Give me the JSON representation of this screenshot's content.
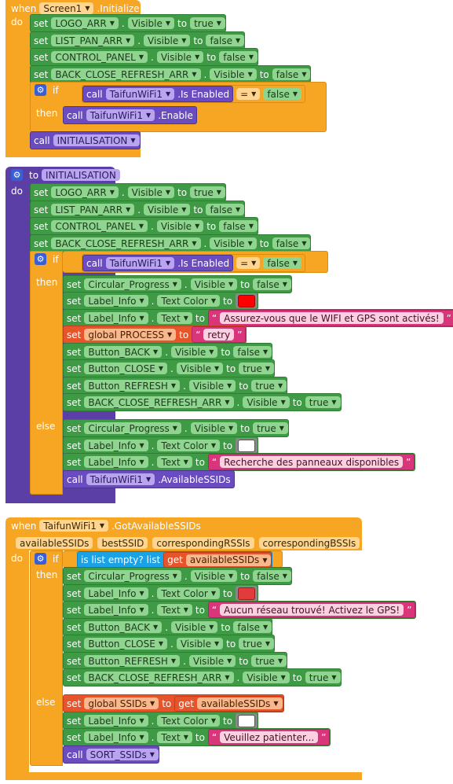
{
  "colors": {
    "event": "#f6a623",
    "setter": "#3f9a45",
    "procedure": "#5b3ea6",
    "red_swatch": "#ff0000",
    "white_swatch": "#ffffff"
  },
  "kw": {
    "when": "when",
    "do": "do",
    "set": "set",
    "to": "to",
    "if": "if",
    "then": "then",
    "else": "else",
    "call": "call",
    "global": "global",
    "get": "get",
    "dot": "."
  },
  "b1": {
    "component": "Screen1",
    "event": ".Initialize",
    "s1": {
      "comp": "LOGO_ARR",
      "prop": "Visible",
      "val": "true"
    },
    "s2": {
      "comp": "LIST_PAN_ARR",
      "prop": "Visible",
      "val": "false"
    },
    "s3": {
      "comp": "CONTROL_PANEL",
      "prop": "Visible",
      "val": "false"
    },
    "s4": {
      "comp": "BACK_CLOSE_REFRESH_ARR",
      "prop": "Visible",
      "val": "false"
    },
    "if": {
      "comp": "TaifunWiFi1",
      "method": ".Is Enabled",
      "op": "=",
      "val": "false"
    },
    "then_call": {
      "comp": "TaifunWiFi1",
      "method": ".Enable"
    },
    "call_proc": "INITIALISATION"
  },
  "b2": {
    "proc_kw": "to",
    "name": "INITIALISATION",
    "s1": {
      "comp": "LOGO_ARR",
      "prop": "Visible",
      "val": "true"
    },
    "s2": {
      "comp": "LIST_PAN_ARR",
      "prop": "Visible",
      "val": "false"
    },
    "s3": {
      "comp": "CONTROL_PANEL",
      "prop": "Visible",
      "val": "false"
    },
    "s4": {
      "comp": "BACK_CLOSE_REFRESH_ARR",
      "prop": "Visible",
      "val": "false"
    },
    "if": {
      "comp": "TaifunWiFi1",
      "method": ".Is Enabled",
      "op": "=",
      "val": "false"
    },
    "t1": {
      "comp": "Circular_Progress",
      "prop": "Visible",
      "val": "false"
    },
    "t2": {
      "comp": "Label_Info",
      "prop": "Text Color"
    },
    "t3": {
      "comp": "Label_Info",
      "prop": "Text",
      "val": "Assurez-vous que le WIFI et GPS sont activés!"
    },
    "t4": {
      "var": "PROCESS",
      "val": "retry"
    },
    "t5": {
      "comp": "Button_BACK",
      "prop": "Visible",
      "val": "false"
    },
    "t6": {
      "comp": "Button_CLOSE",
      "prop": "Visible",
      "val": "true"
    },
    "t7": {
      "comp": "Button_REFRESH",
      "prop": "Visible",
      "val": "true"
    },
    "t8": {
      "comp": "BACK_CLOSE_REFRESH_ARR",
      "prop": "Visible",
      "val": "true"
    },
    "e1": {
      "comp": "Circular_Progress",
      "prop": "Visible",
      "val": "true"
    },
    "e2": {
      "comp": "Label_Info",
      "prop": "Text Color"
    },
    "e3": {
      "comp": "Label_Info",
      "prop": "Text",
      "val": "Recherche des panneaux disponibles"
    },
    "e4": {
      "comp": "TaifunWiFi1",
      "method": ".AvailableSSIDs"
    }
  },
  "b3": {
    "component": "TaifunWiFi1",
    "event": ".GotAvailableSSIDs",
    "params": [
      "availableSSIDs",
      "bestSSID",
      "correspondingRSSIs",
      "correspondingBSSIs"
    ],
    "if": {
      "test": "is list empty?  list",
      "var": "availableSSIDs"
    },
    "t1": {
      "comp": "Circular_Progress",
      "prop": "Visible",
      "val": "false"
    },
    "t2": {
      "comp": "Label_Info",
      "prop": "Text Color"
    },
    "t3": {
      "comp": "Label_Info",
      "prop": "Text",
      "val": "Aucun réseau trouvé! Activez le GPS!"
    },
    "t4": {
      "comp": "Button_BACK",
      "prop": "Visible",
      "val": "false"
    },
    "t5": {
      "comp": "Button_CLOSE",
      "prop": "Visible",
      "val": "true"
    },
    "t6": {
      "comp": "Button_REFRESH",
      "prop": "Visible",
      "val": "true"
    },
    "t7": {
      "comp": "BACK_CLOSE_REFRESH_ARR",
      "prop": "Visible",
      "val": "true"
    },
    "e1": {
      "var": "SSIDs",
      "get": "availableSSIDs"
    },
    "e2": {
      "comp": "Label_Info",
      "prop": "Text Color"
    },
    "e3": {
      "comp": "Label_Info",
      "prop": "Text",
      "val": "Veuillez patienter..."
    },
    "e4": {
      "proc": "SORT_SSIDs"
    }
  }
}
